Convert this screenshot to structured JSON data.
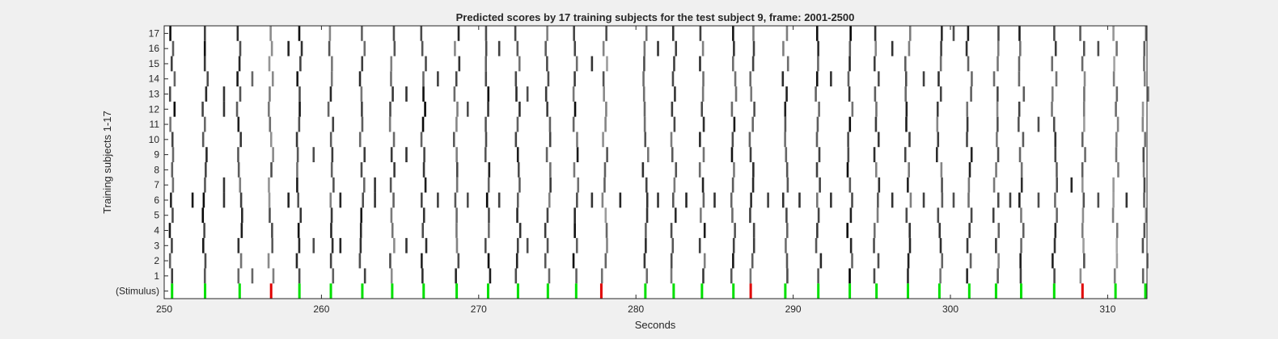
{
  "chart_data": {
    "type": "heatmap",
    "title": "Predicted scores by 17 training subjects for the test subject 9, frame: 2001-2500",
    "xlabel": "Seconds",
    "ylabel": "Training subjects 1-17",
    "xlim": [
      250,
      312.5
    ],
    "x_ticks": [
      "250",
      "260",
      "270",
      "280",
      "290",
      "300",
      "310"
    ],
    "x_tick_values": [
      250,
      260,
      270,
      280,
      290,
      300,
      310
    ],
    "y_tick_labels": [
      "(Stimulus)",
      "1",
      "2",
      "3",
      "4",
      "5",
      "6",
      "7",
      "8",
      "9",
      "10",
      "11",
      "12",
      "13",
      "14",
      "15",
      "16",
      "17"
    ],
    "colors": {
      "background": "#ffffff",
      "score": "#000000",
      "stimulus_green": "#00e000",
      "stimulus_red": "#e00000",
      "figure_bg": "#f0f0f0"
    },
    "stimulus": {
      "green": [
        250.5,
        252.6,
        254.8,
        258.6,
        260.6,
        262.6,
        264.5,
        266.5,
        268.6,
        270.6,
        272.5,
        274.4,
        276.2,
        280.6,
        282.4,
        284.2,
        286.2,
        289.5,
        291.6,
        293.6,
        295.3,
        297.3,
        299.3,
        301.2,
        302.9,
        304.5,
        306.6,
        310.5,
        312.4
      ],
      "red": [
        256.8,
        277.8,
        287.3,
        308.4
      ]
    },
    "responses": [
      {
        "t": 250.5,
        "rows": "all",
        "intensity": 0.95
      },
      {
        "t": 252.6,
        "rows": "all",
        "intensity": 1.0
      },
      {
        "t": 254.8,
        "rows": "all",
        "intensity": 0.9
      },
      {
        "t": 256.8,
        "rows": "all",
        "intensity": 0.75
      },
      {
        "t": 258.6,
        "rows": "all",
        "intensity": 0.95
      },
      {
        "t": 260.6,
        "rows": "all",
        "intensity": 0.85
      },
      {
        "t": 262.6,
        "rows": "all",
        "intensity": 0.95
      },
      {
        "t": 264.5,
        "rows": "all",
        "intensity": 0.8
      },
      {
        "t": 266.5,
        "rows": "all",
        "intensity": 1.0
      },
      {
        "t": 268.6,
        "rows": "all",
        "intensity": 0.85
      },
      {
        "t": 270.6,
        "rows": "all",
        "intensity": 1.0
      },
      {
        "t": 272.5,
        "rows": "all",
        "intensity": 0.95
      },
      {
        "t": 274.4,
        "rows": "all",
        "intensity": 0.85
      },
      {
        "t": 276.2,
        "rows": "all",
        "intensity": 0.95
      },
      {
        "t": 278.0,
        "rows": "all",
        "intensity": 0.7
      },
      {
        "t": 280.6,
        "rows": "all",
        "intensity": 0.9
      },
      {
        "t": 282.4,
        "rows": "all",
        "intensity": 0.85
      },
      {
        "t": 284.2,
        "rows": "all",
        "intensity": 0.9
      },
      {
        "t": 286.2,
        "rows": "all",
        "intensity": 0.95
      },
      {
        "t": 287.4,
        "rows": "all",
        "intensity": 0.85
      },
      {
        "t": 289.5,
        "rows": "all",
        "intensity": 0.9
      },
      {
        "t": 291.6,
        "rows": "all",
        "intensity": 0.95
      },
      {
        "t": 293.6,
        "rows": "all",
        "intensity": 1.0
      },
      {
        "t": 295.3,
        "rows": "all",
        "intensity": 0.85
      },
      {
        "t": 297.3,
        "rows": "all",
        "intensity": 0.9
      },
      {
        "t": 299.3,
        "rows": "all",
        "intensity": 0.85
      },
      {
        "t": 301.2,
        "rows": "all",
        "intensity": 0.95
      },
      {
        "t": 302.9,
        "rows": "all",
        "intensity": 0.8
      },
      {
        "t": 304.5,
        "rows": "all",
        "intensity": 0.95
      },
      {
        "t": 306.6,
        "rows": "all",
        "intensity": 0.9
      },
      {
        "t": 308.4,
        "rows": "all",
        "intensity": 0.7
      },
      {
        "t": 310.5,
        "rows": "all",
        "intensity": 0.6
      },
      {
        "t": 312.4,
        "rows": "all",
        "intensity": 0.75
      }
    ],
    "partial_responses": [
      {
        "t": 251.8,
        "rows": [
          6
        ],
        "intensity": 0.9
      },
      {
        "t": 253.8,
        "rows": [
          6,
          7,
          12,
          13
        ],
        "intensity": 0.8
      },
      {
        "t": 255.6,
        "rows": [
          1,
          14
        ],
        "intensity": 0.6
      },
      {
        "t": 257.9,
        "rows": [
          6,
          16
        ],
        "intensity": 0.85
      },
      {
        "t": 259.5,
        "rows": [
          3,
          9
        ],
        "intensity": 0.7
      },
      {
        "t": 261.2,
        "rows": [
          6,
          3
        ],
        "intensity": 0.85
      },
      {
        "t": 263.4,
        "rows": [
          6,
          7
        ],
        "intensity": 0.8
      },
      {
        "t": 265.4,
        "rows": [
          3,
          9,
          13
        ],
        "intensity": 0.8
      },
      {
        "t": 267.4,
        "rows": [
          6,
          14
        ],
        "intensity": 0.75
      },
      {
        "t": 269.3,
        "rows": [
          6,
          12
        ],
        "intensity": 0.7
      },
      {
        "t": 271.3,
        "rows": [
          6,
          16
        ],
        "intensity": 0.75
      },
      {
        "t": 273.1,
        "rows": [
          3,
          13
        ],
        "intensity": 0.7
      },
      {
        "t": 277.2,
        "rows": [
          6,
          15
        ],
        "intensity": 0.8
      },
      {
        "t": 279.0,
        "rows": [
          6
        ],
        "intensity": 0.85
      },
      {
        "t": 281.4,
        "rows": [
          6,
          16
        ],
        "intensity": 0.8
      },
      {
        "t": 283.2,
        "rows": [
          6
        ],
        "intensity": 0.85
      },
      {
        "t": 285.0,
        "rows": [
          6
        ],
        "intensity": 0.8
      },
      {
        "t": 288.4,
        "rows": [
          6
        ],
        "intensity": 0.75
      },
      {
        "t": 290.4,
        "rows": [
          6
        ],
        "intensity": 0.8
      },
      {
        "t": 292.4,
        "rows": [
          6,
          14
        ],
        "intensity": 0.8
      },
      {
        "t": 296.3,
        "rows": [
          6,
          16
        ],
        "intensity": 0.8
      },
      {
        "t": 298.3,
        "rows": [
          6,
          14
        ],
        "intensity": 0.75
      },
      {
        "t": 300.2,
        "rows": [
          6,
          17
        ],
        "intensity": 0.7
      },
      {
        "t": 303.8,
        "rows": [
          6
        ],
        "intensity": 0.75
      },
      {
        "t": 305.6,
        "rows": [
          6,
          11
        ],
        "intensity": 0.7
      },
      {
        "t": 307.7,
        "rows": [
          7
        ],
        "intensity": 0.85
      },
      {
        "t": 309.4,
        "rows": [
          6,
          16
        ],
        "intensity": 0.7
      },
      {
        "t": 311.2,
        "rows": [
          6
        ],
        "intensity": 0.8
      }
    ]
  }
}
